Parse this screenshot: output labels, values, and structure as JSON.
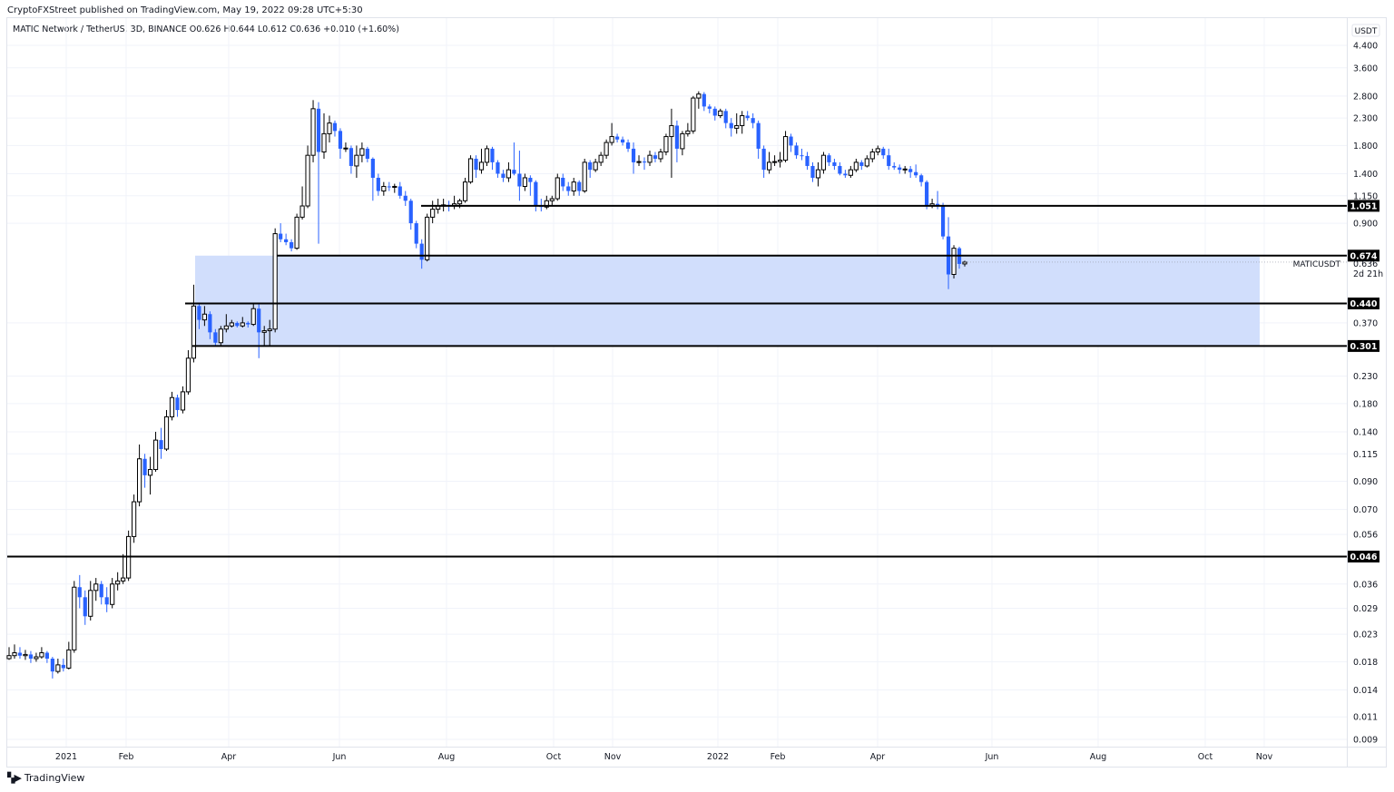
{
  "header": {
    "published": "CryptoFXStreet published on TradingView.com, May 19, 2022 09:28 UTC+5:30",
    "legend": "MATIC Network / TetherUS, 3D, BINANCE  O0.626  H0.644  L0.612  C0.636  +0.010 (+1.60%)"
  },
  "watermark": {
    "text": "TradingView"
  },
  "colors": {
    "up_body": "#ffffff",
    "up_border": "#000000",
    "down": "#2962ff",
    "zone": "#cfdcfc",
    "level": "#000000",
    "grid": "#f0f3fa"
  },
  "chart_data": {
    "type": "candlestick",
    "symbol": "MATICUSDT",
    "interval": "3D",
    "y_scale": "log",
    "y_unit": "USDT",
    "countdown": "2d 21h",
    "last_price": 0.636,
    "y_ticks": [
      4.4,
      3.6,
      2.8,
      2.3,
      1.8,
      1.4,
      1.15,
      0.9,
      0.37,
      0.23,
      0.18,
      0.14,
      0.115,
      0.09,
      0.07,
      0.056,
      0.036,
      0.029,
      0.023,
      0.018,
      0.014,
      0.011,
      0.009
    ],
    "y_tick_labels": [
      "4.400",
      "3.600",
      "2.800",
      "2.300",
      "1.800",
      "1.400",
      "1.150",
      "0.900",
      "0.370",
      "0.230",
      "0.180",
      "0.140",
      "0.115",
      "0.090",
      "0.070",
      "0.056",
      "0.036",
      "0.029",
      "0.023",
      "0.018",
      "0.014",
      "0.011",
      "0.009"
    ],
    "x_tick_labels": [
      "2021",
      "Feb",
      "Apr",
      "Jun",
      "Aug",
      "Oct",
      "Nov",
      "2022",
      "Feb",
      "Apr",
      "Jun",
      "Aug",
      "Oct",
      "Nov"
    ],
    "levels": [
      {
        "price": 1.051,
        "label": "1.051"
      },
      {
        "price": 0.674,
        "label": "0.674"
      },
      {
        "price": 0.44,
        "label": "0.440"
      },
      {
        "price": 0.301,
        "label": "0.301"
      },
      {
        "price": 0.046,
        "label": "0.046"
      }
    ],
    "zone": {
      "top": 0.674,
      "bottom": 0.301
    },
    "ohlc": [
      [
        0.0185,
        0.0205,
        0.0183,
        0.019
      ],
      [
        0.019,
        0.021,
        0.0185,
        0.0195
      ],
      [
        0.0195,
        0.0205,
        0.0185,
        0.019
      ],
      [
        0.019,
        0.02,
        0.0183,
        0.0192
      ],
      [
        0.0192,
        0.0198,
        0.0178,
        0.0185
      ],
      [
        0.0185,
        0.0195,
        0.018,
        0.0188
      ],
      [
        0.0188,
        0.0205,
        0.0185,
        0.0195
      ],
      [
        0.0195,
        0.0198,
        0.0178,
        0.0185
      ],
      [
        0.0185,
        0.0188,
        0.0155,
        0.0165
      ],
      [
        0.0165,
        0.0185,
        0.0162,
        0.0175
      ],
      [
        0.0175,
        0.0185,
        0.0165,
        0.017
      ],
      [
        0.017,
        0.0215,
        0.0168,
        0.02
      ],
      [
        0.02,
        0.037,
        0.0195,
        0.035
      ],
      [
        0.035,
        0.039,
        0.029,
        0.032
      ],
      [
        0.032,
        0.034,
        0.025,
        0.027
      ],
      [
        0.027,
        0.037,
        0.026,
        0.034
      ],
      [
        0.034,
        0.038,
        0.031,
        0.036
      ],
      [
        0.036,
        0.037,
        0.03,
        0.032
      ],
      [
        0.032,
        0.035,
        0.028,
        0.03
      ],
      [
        0.03,
        0.038,
        0.029,
        0.036
      ],
      [
        0.036,
        0.04,
        0.034,
        0.037
      ],
      [
        0.037,
        0.047,
        0.036,
        0.038
      ],
      [
        0.038,
        0.058,
        0.037,
        0.055
      ],
      [
        0.055,
        0.08,
        0.052,
        0.075
      ],
      [
        0.075,
        0.125,
        0.072,
        0.11
      ],
      [
        0.11,
        0.115,
        0.085,
        0.095
      ],
      [
        0.095,
        0.112,
        0.08,
        0.1
      ],
      [
        0.1,
        0.14,
        0.098,
        0.13
      ],
      [
        0.13,
        0.145,
        0.11,
        0.12
      ],
      [
        0.12,
        0.17,
        0.118,
        0.16
      ],
      [
        0.16,
        0.2,
        0.155,
        0.19
      ],
      [
        0.19,
        0.195,
        0.16,
        0.17
      ],
      [
        0.17,
        0.21,
        0.165,
        0.2
      ],
      [
        0.2,
        0.29,
        0.195,
        0.27
      ],
      [
        0.27,
        0.52,
        0.26,
        0.43
      ],
      [
        0.43,
        0.44,
        0.35,
        0.38
      ],
      [
        0.38,
        0.43,
        0.36,
        0.4
      ],
      [
        0.4,
        0.41,
        0.32,
        0.34
      ],
      [
        0.34,
        0.35,
        0.3,
        0.31
      ],
      [
        0.31,
        0.36,
        0.3,
        0.35
      ],
      [
        0.35,
        0.4,
        0.34,
        0.36
      ],
      [
        0.36,
        0.38,
        0.355,
        0.37
      ],
      [
        0.37,
        0.375,
        0.355,
        0.36
      ],
      [
        0.36,
        0.39,
        0.355,
        0.37
      ],
      [
        0.37,
        0.375,
        0.355,
        0.365
      ],
      [
        0.365,
        0.44,
        0.36,
        0.42
      ],
      [
        0.42,
        0.44,
        0.27,
        0.34
      ],
      [
        0.34,
        0.36,
        0.3,
        0.345
      ],
      [
        0.345,
        0.38,
        0.3,
        0.35
      ],
      [
        0.35,
        0.86,
        0.34,
        0.82
      ],
      [
        0.82,
        0.9,
        0.76,
        0.78
      ],
      [
        0.78,
        0.82,
        0.74,
        0.76
      ],
      [
        0.76,
        0.78,
        0.7,
        0.72
      ],
      [
        0.72,
        0.98,
        0.71,
        0.95
      ],
      [
        0.95,
        1.25,
        0.93,
        1.05
      ],
      [
        1.05,
        1.8,
        1.03,
        1.65
      ],
      [
        1.65,
        2.7,
        1.55,
        2.5
      ],
      [
        2.5,
        2.65,
        0.75,
        1.7
      ],
      [
        1.7,
        2.4,
        1.6,
        2.0
      ],
      [
        2.0,
        2.35,
        1.85,
        2.2
      ],
      [
        2.2,
        2.25,
        1.95,
        2.05
      ],
      [
        2.05,
        2.1,
        1.6,
        1.75
      ],
      [
        1.75,
        1.85,
        1.7,
        1.76
      ],
      [
        1.76,
        1.8,
        1.4,
        1.5
      ],
      [
        1.5,
        1.8,
        1.35,
        1.65
      ],
      [
        1.65,
        1.85,
        1.55,
        1.75
      ],
      [
        1.75,
        1.78,
        1.55,
        1.6
      ],
      [
        1.6,
        1.62,
        1.1,
        1.35
      ],
      [
        1.35,
        1.4,
        1.15,
        1.2
      ],
      [
        1.2,
        1.3,
        1.15,
        1.25
      ],
      [
        1.25,
        1.3,
        1.2,
        1.24
      ],
      [
        1.24,
        1.28,
        1.18,
        1.25
      ],
      [
        1.25,
        1.3,
        1.12,
        1.15
      ],
      [
        1.15,
        1.2,
        1.05,
        1.1
      ],
      [
        1.1,
        1.12,
        0.85,
        0.9
      ],
      [
        0.9,
        0.92,
        0.72,
        0.75
      ],
      [
        0.75,
        0.78,
        0.6,
        0.65
      ],
      [
        0.65,
        0.98,
        0.64,
        0.95
      ],
      [
        0.95,
        1.1,
        0.9,
        1.02
      ],
      [
        1.02,
        1.12,
        0.98,
        1.05
      ],
      [
        1.05,
        1.12,
        1.0,
        1.06
      ],
      [
        1.06,
        1.1,
        1.0,
        1.05
      ],
      [
        1.05,
        1.15,
        1.02,
        1.07
      ],
      [
        1.07,
        1.12,
        1.03,
        1.1
      ],
      [
        1.1,
        1.35,
        1.08,
        1.3
      ],
      [
        1.3,
        1.65,
        1.28,
        1.6
      ],
      [
        1.6,
        1.65,
        1.35,
        1.45
      ],
      [
        1.45,
        1.75,
        1.4,
        1.55
      ],
      [
        1.55,
        1.8,
        1.5,
        1.75
      ],
      [
        1.75,
        1.78,
        1.45,
        1.55
      ],
      [
        1.55,
        1.58,
        1.35,
        1.4
      ],
      [
        1.4,
        1.45,
        1.3,
        1.35
      ],
      [
        1.35,
        1.55,
        1.3,
        1.45
      ],
      [
        1.45,
        1.85,
        1.38,
        1.4
      ],
      [
        1.4,
        1.72,
        1.1,
        1.25
      ],
      [
        1.25,
        1.4,
        1.2,
        1.35
      ],
      [
        1.35,
        1.38,
        1.15,
        1.3
      ],
      [
        1.3,
        1.32,
        1.0,
        1.05
      ],
      [
        1.05,
        1.12,
        1.0,
        1.04
      ],
      [
        1.04,
        1.15,
        1.02,
        1.1
      ],
      [
        1.1,
        1.15,
        1.05,
        1.12
      ],
      [
        1.12,
        1.4,
        1.1,
        1.35
      ],
      [
        1.35,
        1.4,
        1.2,
        1.25
      ],
      [
        1.25,
        1.3,
        1.15,
        1.2
      ],
      [
        1.2,
        1.35,
        1.15,
        1.3
      ],
      [
        1.3,
        1.32,
        1.15,
        1.2
      ],
      [
        1.2,
        1.6,
        1.18,
        1.55
      ],
      [
        1.55,
        1.58,
        1.35,
        1.45
      ],
      [
        1.45,
        1.6,
        1.42,
        1.55
      ],
      [
        1.55,
        1.7,
        1.5,
        1.65
      ],
      [
        1.65,
        1.9,
        1.6,
        1.85
      ],
      [
        1.85,
        2.2,
        1.8,
        1.95
      ],
      [
        1.95,
        2.0,
        1.85,
        1.9
      ],
      [
        1.9,
        1.95,
        1.8,
        1.85
      ],
      [
        1.85,
        1.9,
        1.7,
        1.75
      ],
      [
        1.75,
        1.85,
        1.4,
        1.55
      ],
      [
        1.55,
        1.65,
        1.5,
        1.56
      ],
      [
        1.56,
        1.62,
        1.45,
        1.55
      ],
      [
        1.55,
        1.72,
        1.5,
        1.65
      ],
      [
        1.65,
        1.7,
        1.55,
        1.6
      ],
      [
        1.6,
        1.75,
        1.55,
        1.7
      ],
      [
        1.7,
        2.0,
        1.65,
        1.95
      ],
      [
        1.95,
        2.5,
        1.35,
        2.15
      ],
      [
        2.15,
        2.25,
        1.55,
        1.75
      ],
      [
        1.75,
        2.05,
        1.65,
        2.0
      ],
      [
        2.0,
        2.2,
        1.95,
        2.05
      ],
      [
        2.05,
        2.8,
        2.0,
        2.75
      ],
      [
        2.75,
        2.92,
        2.5,
        2.85
      ],
      [
        2.85,
        2.9,
        2.45,
        2.55
      ],
      [
        2.55,
        2.6,
        2.4,
        2.5
      ],
      [
        2.5,
        2.55,
        2.25,
        2.35
      ],
      [
        2.35,
        2.5,
        2.3,
        2.45
      ],
      [
        2.45,
        2.5,
        2.1,
        2.2
      ],
      [
        2.2,
        2.3,
        1.95,
        2.1
      ],
      [
        2.1,
        2.4,
        2.0,
        2.15
      ],
      [
        2.15,
        2.45,
        2.0,
        2.35
      ],
      [
        2.35,
        2.45,
        2.25,
        2.3
      ],
      [
        2.3,
        2.4,
        2.1,
        2.2
      ],
      [
        2.2,
        2.25,
        1.6,
        1.75
      ],
      [
        1.75,
        1.8,
        1.35,
        1.45
      ],
      [
        1.45,
        1.7,
        1.4,
        1.55
      ],
      [
        1.55,
        1.65,
        1.5,
        1.56
      ],
      [
        1.56,
        1.7,
        1.48,
        1.58
      ],
      [
        1.58,
        2.05,
        1.55,
        1.95
      ],
      [
        1.95,
        2.0,
        1.7,
        1.8
      ],
      [
        1.8,
        1.85,
        1.6,
        1.65
      ],
      [
        1.65,
        1.75,
        1.58,
        1.64
      ],
      [
        1.64,
        1.7,
        1.45,
        1.5
      ],
      [
        1.5,
        1.55,
        1.3,
        1.35
      ],
      [
        1.35,
        1.55,
        1.25,
        1.45
      ],
      [
        1.45,
        1.7,
        1.4,
        1.65
      ],
      [
        1.65,
        1.68,
        1.5,
        1.55
      ],
      [
        1.55,
        1.6,
        1.45,
        1.5
      ],
      [
        1.5,
        1.55,
        1.38,
        1.4
      ],
      [
        1.4,
        1.45,
        1.35,
        1.38
      ],
      [
        1.38,
        1.5,
        1.35,
        1.45
      ],
      [
        1.45,
        1.6,
        1.42,
        1.55
      ],
      [
        1.55,
        1.58,
        1.45,
        1.5
      ],
      [
        1.5,
        1.65,
        1.48,
        1.6
      ],
      [
        1.6,
        1.75,
        1.55,
        1.7
      ],
      [
        1.7,
        1.8,
        1.65,
        1.75
      ],
      [
        1.75,
        1.78,
        1.6,
        1.65
      ],
      [
        1.65,
        1.75,
        1.45,
        1.5
      ],
      [
        1.5,
        1.55,
        1.45,
        1.48
      ],
      [
        1.48,
        1.52,
        1.4,
        1.45
      ],
      [
        1.45,
        1.5,
        1.4,
        1.46
      ],
      [
        1.46,
        1.5,
        1.35,
        1.42
      ],
      [
        1.42,
        1.52,
        1.35,
        1.38
      ],
      [
        1.38,
        1.4,
        1.25,
        1.3
      ],
      [
        1.3,
        1.32,
        1.02,
        1.05
      ],
      [
        1.05,
        1.12,
        1.03,
        1.07
      ],
      [
        1.07,
        1.2,
        1.02,
        1.05
      ],
      [
        1.05,
        1.08,
        0.78,
        0.8
      ],
      [
        0.8,
        0.95,
        0.5,
        0.57
      ],
      [
        0.57,
        0.74,
        0.55,
        0.72
      ],
      [
        0.72,
        0.73,
        0.6,
        0.626
      ],
      [
        0.626,
        0.644,
        0.612,
        0.636
      ]
    ]
  }
}
